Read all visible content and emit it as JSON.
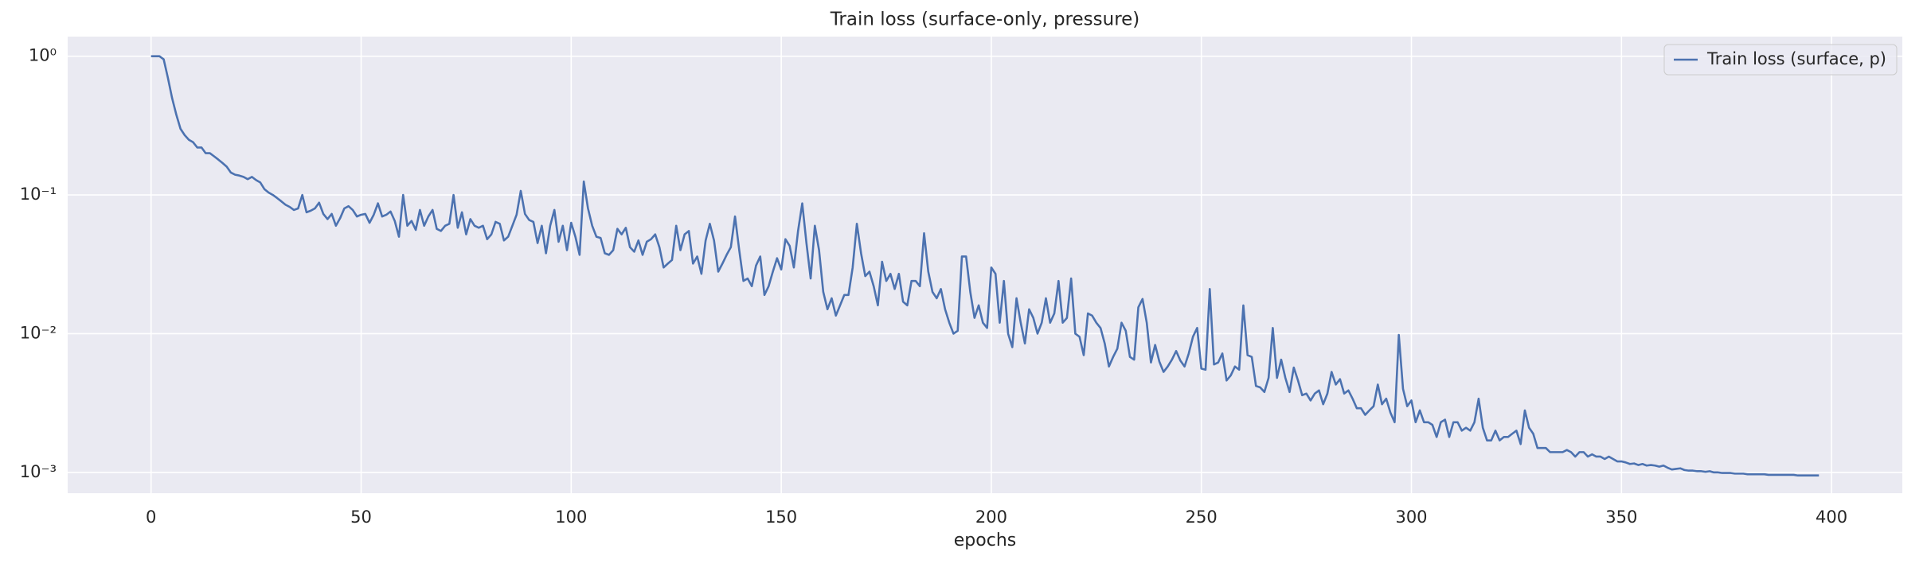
{
  "chart_data": {
    "type": "line",
    "title": "Train loss (surface-only, pressure)",
    "xlabel": "epochs",
    "log_y": true,
    "grid": true,
    "legend": "upper right",
    "xlim": [
      -19.85,
      416.85
    ],
    "xticks": [
      0,
      50,
      100,
      150,
      200,
      250,
      300,
      350,
      400
    ],
    "ylim": [
      0.000708,
      1.386
    ],
    "yticks": [
      {
        "value": 0.001,
        "label": "10⁻³"
      },
      {
        "value": 0.01,
        "label": "10⁻²"
      },
      {
        "value": 0.1,
        "label": "10⁻¹"
      },
      {
        "value": 1,
        "label": "10⁰"
      }
    ],
    "x": [
      0,
      1,
      2,
      3,
      4,
      5,
      6,
      7,
      8,
      9,
      10,
      11,
      12,
      13,
      14,
      15,
      16,
      17,
      18,
      19,
      20,
      21,
      22,
      23,
      24,
      25,
      26,
      27,
      28,
      29,
      30,
      31,
      32,
      33,
      34,
      35,
      36,
      37,
      38,
      39,
      40,
      41,
      42,
      43,
      44,
      45,
      46,
      47,
      48,
      49,
      50,
      51,
      52,
      53,
      54,
      55,
      56,
      57,
      58,
      59,
      60,
      61,
      62,
      63,
      64,
      65,
      66,
      67,
      68,
      69,
      70,
      71,
      72,
      73,
      74,
      75,
      76,
      77,
      78,
      79,
      80,
      81,
      82,
      83,
      84,
      85,
      86,
      87,
      88,
      89,
      90,
      91,
      92,
      93,
      94,
      95,
      96,
      97,
      98,
      99,
      100,
      101,
      102,
      103,
      104,
      105,
      106,
      107,
      108,
      109,
      110,
      111,
      112,
      113,
      114,
      115,
      116,
      117,
      118,
      119,
      120,
      121,
      122,
      123,
      124,
      125,
      126,
      127,
      128,
      129,
      130,
      131,
      132,
      133,
      134,
      135,
      136,
      137,
      138,
      139,
      140,
      141,
      142,
      143,
      144,
      145,
      146,
      147,
      148,
      149,
      150,
      151,
      152,
      153,
      154,
      155,
      156,
      157,
      158,
      159,
      160,
      161,
      162,
      163,
      164,
      165,
      166,
      167,
      168,
      169,
      170,
      171,
      172,
      173,
      174,
      175,
      176,
      177,
      178,
      179,
      180,
      181,
      182,
      183,
      184,
      185,
      186,
      187,
      188,
      189,
      190,
      191,
      192,
      193,
      194,
      195,
      196,
      197,
      198,
      199,
      200,
      201,
      202,
      203,
      204,
      205,
      206,
      207,
      208,
      209,
      210,
      211,
      212,
      213,
      214,
      215,
      216,
      217,
      218,
      219,
      220,
      221,
      222,
      223,
      224,
      225,
      226,
      227,
      228,
      229,
      230,
      231,
      232,
      233,
      234,
      235,
      236,
      237,
      238,
      239,
      240,
      241,
      242,
      243,
      244,
      245,
      246,
      247,
      248,
      249,
      250,
      251,
      252,
      253,
      254,
      255,
      256,
      257,
      258,
      259,
      260,
      261,
      262,
      263,
      264,
      265,
      266,
      267,
      268,
      269,
      270,
      271,
      272,
      273,
      274,
      275,
      276,
      277,
      278,
      279,
      280,
      281,
      282,
      283,
      284,
      285,
      286,
      287,
      288,
      289,
      290,
      291,
      292,
      293,
      294,
      295,
      296,
      297,
      298,
      299,
      300,
      301,
      302,
      303,
      304,
      305,
      306,
      307,
      308,
      309,
      310,
      311,
      312,
      313,
      314,
      315,
      316,
      317,
      318,
      319,
      320,
      321,
      322,
      323,
      324,
      325,
      326,
      327,
      328,
      329,
      330,
      331,
      332,
      333,
      334,
      335,
      336,
      337,
      338,
      339,
      340,
      341,
      342,
      343,
      344,
      345,
      346,
      347,
      348,
      349,
      350,
      351,
      352,
      353,
      354,
      355,
      356,
      357,
      358,
      359,
      360,
      361,
      362,
      363,
      364,
      365,
      366,
      367,
      368,
      369,
      370,
      371,
      372,
      373,
      374,
      375,
      376,
      377,
      378,
      379,
      380,
      381,
      382,
      383,
      384,
      385,
      386,
      387,
      388,
      389,
      390,
      391,
      392,
      393,
      394,
      395,
      396,
      397
    ],
    "series": [
      {
        "name": "Train loss (surface, p)",
        "color": "#4c72b0",
        "values": [
          1.0,
          1.0,
          1.0,
          0.95,
          0.7,
          0.5,
          0.38,
          0.3,
          0.27,
          0.25,
          0.24,
          0.22,
          0.22,
          0.2,
          0.2,
          0.19,
          0.18,
          0.17,
          0.16,
          0.145,
          0.14,
          0.138,
          0.135,
          0.13,
          0.135,
          0.128,
          0.123,
          0.11,
          0.104,
          0.1,
          0.095,
          0.09,
          0.085,
          0.082,
          0.078,
          0.08,
          0.1,
          0.075,
          0.077,
          0.08,
          0.088,
          0.073,
          0.067,
          0.073,
          0.06,
          0.068,
          0.08,
          0.083,
          0.078,
          0.07,
          0.072,
          0.073,
          0.063,
          0.072,
          0.087,
          0.07,
          0.072,
          0.076,
          0.065,
          0.05,
          0.1,
          0.06,
          0.065,
          0.056,
          0.078,
          0.06,
          0.07,
          0.078,
          0.057,
          0.055,
          0.06,
          0.062,
          0.1,
          0.058,
          0.075,
          0.052,
          0.067,
          0.06,
          0.058,
          0.06,
          0.048,
          0.052,
          0.064,
          0.062,
          0.047,
          0.05,
          0.06,
          0.072,
          0.107,
          0.073,
          0.066,
          0.064,
          0.045,
          0.06,
          0.038,
          0.06,
          0.078,
          0.046,
          0.06,
          0.04,
          0.063,
          0.05,
          0.037,
          0.125,
          0.08,
          0.06,
          0.05,
          0.049,
          0.038,
          0.037,
          0.04,
          0.057,
          0.052,
          0.058,
          0.042,
          0.039,
          0.047,
          0.037,
          0.046,
          0.048,
          0.052,
          0.042,
          0.03,
          0.032,
          0.034,
          0.06,
          0.04,
          0.052,
          0.055,
          0.032,
          0.036,
          0.027,
          0.047,
          0.062,
          0.047,
          0.028,
          0.032,
          0.037,
          0.042,
          0.07,
          0.04,
          0.024,
          0.025,
          0.022,
          0.031,
          0.036,
          0.019,
          0.022,
          0.028,
          0.035,
          0.029,
          0.048,
          0.043,
          0.03,
          0.055,
          0.087,
          0.045,
          0.025,
          0.06,
          0.04,
          0.02,
          0.015,
          0.018,
          0.0135,
          0.016,
          0.019,
          0.019,
          0.03,
          0.062,
          0.038,
          0.026,
          0.028,
          0.022,
          0.016,
          0.033,
          0.024,
          0.027,
          0.021,
          0.027,
          0.017,
          0.016,
          0.024,
          0.024,
          0.022,
          0.053,
          0.028,
          0.02,
          0.018,
          0.021,
          0.015,
          0.012,
          0.01,
          0.0105,
          0.036,
          0.036,
          0.02,
          0.013,
          0.016,
          0.012,
          0.011,
          0.03,
          0.027,
          0.012,
          0.024,
          0.01,
          0.008,
          0.018,
          0.012,
          0.0085,
          0.015,
          0.013,
          0.01,
          0.012,
          0.018,
          0.012,
          0.014,
          0.024,
          0.012,
          0.013,
          0.025,
          0.01,
          0.0095,
          0.007,
          0.014,
          0.0135,
          0.012,
          0.011,
          0.0085,
          0.0058,
          0.0068,
          0.0078,
          0.012,
          0.0105,
          0.0068,
          0.0065,
          0.0155,
          0.0178,
          0.012,
          0.0062,
          0.0083,
          0.0063,
          0.0053,
          0.0058,
          0.0065,
          0.0075,
          0.0064,
          0.0058,
          0.0072,
          0.0095,
          0.011,
          0.0056,
          0.0055,
          0.021,
          0.006,
          0.0062,
          0.0072,
          0.0046,
          0.005,
          0.0058,
          0.0055,
          0.016,
          0.007,
          0.0068,
          0.0042,
          0.0041,
          0.0038,
          0.0048,
          0.011,
          0.0048,
          0.0065,
          0.0048,
          0.0038,
          0.0057,
          0.0046,
          0.0036,
          0.0037,
          0.0033,
          0.0037,
          0.0039,
          0.0031,
          0.0037,
          0.0053,
          0.0043,
          0.0047,
          0.0037,
          0.0039,
          0.0034,
          0.0029,
          0.0029,
          0.0026,
          0.0028,
          0.003,
          0.0043,
          0.0031,
          0.0034,
          0.0027,
          0.0023,
          0.0098,
          0.004,
          0.003,
          0.0033,
          0.0023,
          0.0028,
          0.0023,
          0.0023,
          0.0022,
          0.0018,
          0.0023,
          0.0024,
          0.0018,
          0.0023,
          0.0023,
          0.002,
          0.0021,
          0.002,
          0.0023,
          0.0034,
          0.0021,
          0.0017,
          0.0017,
          0.002,
          0.0017,
          0.0018,
          0.0018,
          0.0019,
          0.002,
          0.0016,
          0.0028,
          0.0021,
          0.0019,
          0.0015,
          0.0015,
          0.0015,
          0.0014,
          0.0014,
          0.0014,
          0.0014,
          0.00145,
          0.0014,
          0.0013,
          0.0014,
          0.0014,
          0.0013,
          0.00135,
          0.0013,
          0.0013,
          0.00125,
          0.0013,
          0.00125,
          0.0012,
          0.0012,
          0.00118,
          0.00115,
          0.00116,
          0.00113,
          0.00115,
          0.00112,
          0.00113,
          0.00112,
          0.0011,
          0.00112,
          0.00108,
          0.00105,
          0.00106,
          0.00107,
          0.00104,
          0.00103,
          0.00103,
          0.00102,
          0.00102,
          0.00101,
          0.00102,
          0.001,
          0.001,
          0.00099,
          0.00099,
          0.00099,
          0.00098,
          0.00098,
          0.00098,
          0.00097,
          0.00097,
          0.00097,
          0.00097,
          0.00097,
          0.00096,
          0.00096,
          0.00096,
          0.00096,
          0.00096,
          0.00096,
          0.00096,
          0.00095,
          0.00095,
          0.00095,
          0.00095,
          0.00095,
          0.00095
        ]
      }
    ]
  }
}
